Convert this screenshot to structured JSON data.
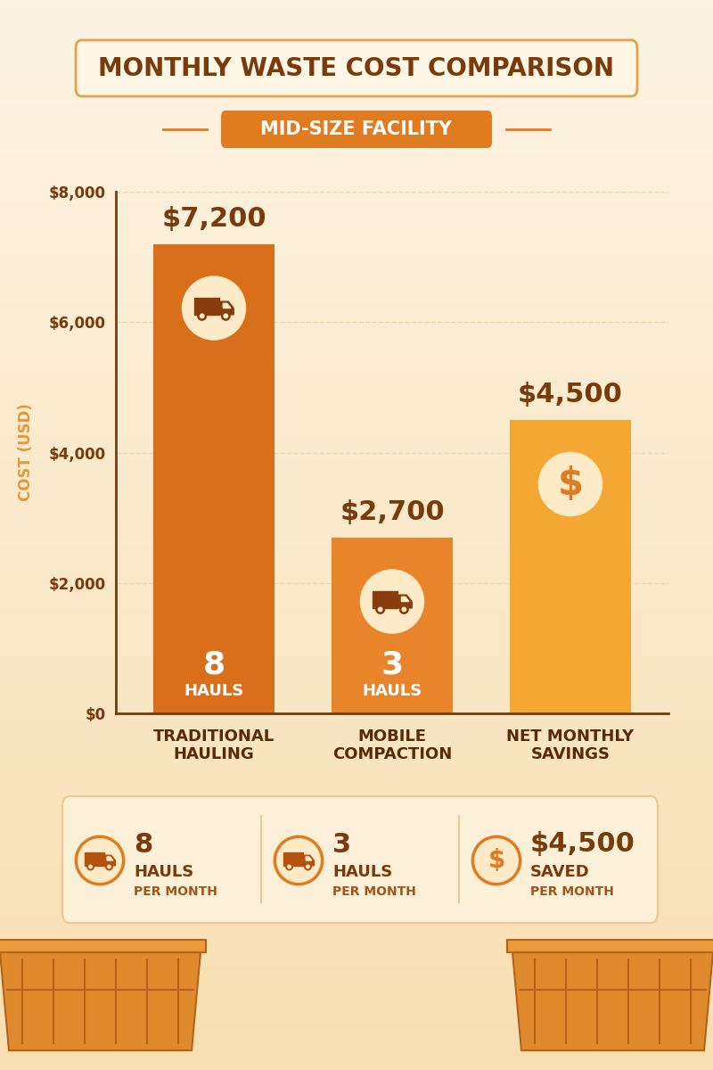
{
  "chart_data": {
    "type": "bar",
    "title": "MONTHLY WASTE COST COMPARISON",
    "subtitle": "MID-SIZE FACILITY",
    "categories": [
      "TRADITIONAL\nHAULING",
      "MOBILE\nCOMPACTION",
      "NET MONTHLY\nSAVINGS"
    ],
    "values": [
      7200,
      2700,
      4500
    ],
    "value_labels": [
      "$7,200",
      "$2,700",
      "$4,500"
    ],
    "data_labels": true,
    "colors": [
      "#d96f1a",
      "#e8842a",
      "#f5a733"
    ],
    "ylabel": "COST (USD)",
    "ylim": [
      0,
      8000
    ],
    "yticks": [
      {
        "value": 0,
        "label": "$0"
      },
      {
        "value": 2000,
        "label": "$2,000"
      },
      {
        "value": 4000,
        "label": "$4,000"
      },
      {
        "value": 6000,
        "label": "$6,000"
      },
      {
        "value": 8000,
        "label": "$8,000"
      }
    ],
    "grid": true,
    "hauls": [
      8,
      3,
      null
    ],
    "hauls_label": "HAULS"
  },
  "icons": {
    "savings": "$"
  },
  "summary": [
    {
      "value": 8,
      "text": "HAULS",
      "note": "PER MONTH"
    },
    {
      "value": 3,
      "text": "HAULS",
      "note": "PER MONTH"
    },
    {
      "value": 4500,
      "label": "$4,500",
      "text": "SAVED",
      "note": "PER MONTH"
    }
  ]
}
